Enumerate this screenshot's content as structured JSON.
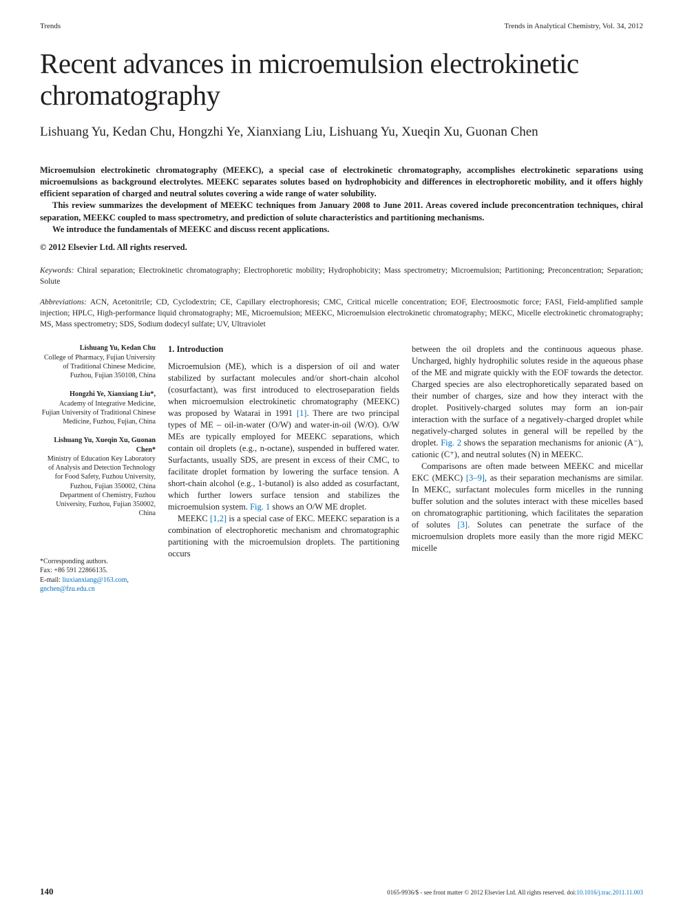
{
  "header": {
    "left": "Trends",
    "right": "Trends in Analytical Chemistry, Vol. 34, 2012"
  },
  "title": "Recent advances in microemulsion electrokinetic chromatography",
  "authors": "Lishuang Yu, Kedan Chu, Hongzhi Ye, Xianxiang Liu, Lishuang Yu, Xueqin Xu, Guonan Chen",
  "abstract": {
    "p1": "Microemulsion electrokinetic chromatography (MEEKC), a special case of electrokinetic chromatography, accomplishes electrokinetic separations using microemulsions as background electrolytes. MEEKC separates solutes based on hydrophobicity and differences in electrophoretic mobility, and it offers highly efficient separation of charged and neutral solutes covering a wide range of water solubility.",
    "p2": "This review summarizes the development of MEEKC techniques from January 2008 to June 2011. Areas covered include preconcentration techniques, chiral separation, MEEKC coupled to mass spectrometry, and prediction of solute characteristics and partitioning mechanisms.",
    "p3": "We introduce the fundamentals of MEEKC and discuss recent applications.",
    "copyright": "© 2012 Elsevier Ltd. All rights reserved."
  },
  "keywords": {
    "label": "Keywords:",
    "body": " Chiral separation; Electrokinetic chromatography; Electrophoretic mobility; Hydrophobicity; Mass spectrometry; Microemulsion; Partitioning; Preconcentration; Separation; Solute"
  },
  "abbreviations": {
    "label": "Abbreviations:",
    "body": " ACN, Acetonitrile; CD, Cyclodextrin; CE, Capillary electrophoresis; CMC, Critical micelle concentration; EOF, Electroosmotic force; FASI, Field-amplified sample injection; HPLC, High-performance liquid chromatography; ME, Microemulsion; MEEKC, Microemulsion electrokinetic chromatography; MEKC, Micelle electrokinetic chromatography; MS, Mass spectrometry; SDS, Sodium dodecyl sulfate; UV, Ultraviolet"
  },
  "affiliations": [
    {
      "names": "Lishuang Yu, Kedan Chu",
      "body": "College of Pharmacy, Fujian University of Traditional Chinese Medicine, Fuzhou, Fujian 350108, China"
    },
    {
      "names": "Hongzhi Ye, Xianxiang Liu*,",
      "body": "Academy of Integrative Medicine, Fujian University of Traditional Chinese Medicine, Fuzhou, Fujian, China"
    },
    {
      "names": "Lishuang Yu, Xueqin Xu, Guonan Chen*",
      "body": "Ministry of Education Key Laboratory of Analysis and Detection Technology for Food Safety, Fuzhou University, Fuzhou, Fujian 350002, China Department of Chemistry, Fuzhou University, Fuzhou, Fujian 350002, China"
    }
  ],
  "correspondence": {
    "label": "*Corresponding authors.",
    "fax": "Fax: +86 591 22866135.",
    "email_label": "E-mail:",
    "email1": "liuxianxiang@163.com",
    "email2": "gnchen@fzu.edu.cn"
  },
  "body": {
    "section_head": "1. Introduction",
    "col1_p1a": "Microemulsion (ME), which is a dispersion of oil and water stabilized by surfactant molecules and/or short-chain alcohol (cosurfactant), was first introduced to electroseparation fields when microemulsion electrokinetic chromatography (MEEKC) was proposed by Watarai in 1991 ",
    "ref1": "[1]",
    "col1_p1b": ". There are two principal types of ME – oil-in-water (O/W) and water-in-oil (W/O). O/W MEs are typically employed for MEEKC separations, which contain oil droplets (e.g., n-octane), suspended in buffered water. Surfactants, usually SDS, are present in excess of their CMC, to facilitate droplet formation by lowering the surface tension. A short-chain alcohol (e.g., 1-butanol) is also added as cosurfactant, which further lowers surface tension and stabilizes the microemulsion system. ",
    "fig1": "Fig. 1",
    "col1_p1c": " shows an O/W ME droplet.",
    "col1_p2a": "MEEKC ",
    "ref12": "[1,2]",
    "col1_p2b": " is a special case of EKC. MEEKC separation is a combination of electrophoretic mechanism and chromatographic partitioning with the microemulsion droplets. The partitioning occurs",
    "col2_p1a": "between the oil droplets and the continuous aqueous phase. Uncharged, highly hydrophilic solutes reside in the aqueous phase of the ME and migrate quickly with the EOF towards the detector. Charged species are also electrophoretically separated based on their number of charges, size and how they interact with the droplet. Positively-charged solutes may form an ion-pair interaction with the surface of a negatively-charged droplet while negatively-charged solutes in general will be repelled by the droplet. ",
    "fig2": "Fig. 2",
    "col2_p1b": " shows the separation mechanisms for anionic (A⁻), cationic (C⁺), and neutral solutes (N) in MEEKC.",
    "col2_p2a": "Comparisons are often made between MEEKC and micellar EKC (MEKC) ",
    "ref39": "[3–9]",
    "col2_p2b": ", as their separation mechanisms are similar. In MEKC, surfactant molecules form micelles in the running buffer solution and the solutes interact with these micelles based on chromatographic partitioning, which facilitates the separation of solutes ",
    "ref3": "[3]",
    "col2_p2c": ". Solutes can penetrate the surface of the microemulsion droplets more easily than the more rigid MEKC micelle"
  },
  "footer": {
    "page": "140",
    "right_a": "0165-9936/$ - see front matter © 2012 Elsevier Ltd. All rights reserved. doi:",
    "doi": "10.1016/j.trac.2011.11.003"
  },
  "colors": {
    "text": "#231f20",
    "link": "#0070c0",
    "background": "#ffffff"
  }
}
